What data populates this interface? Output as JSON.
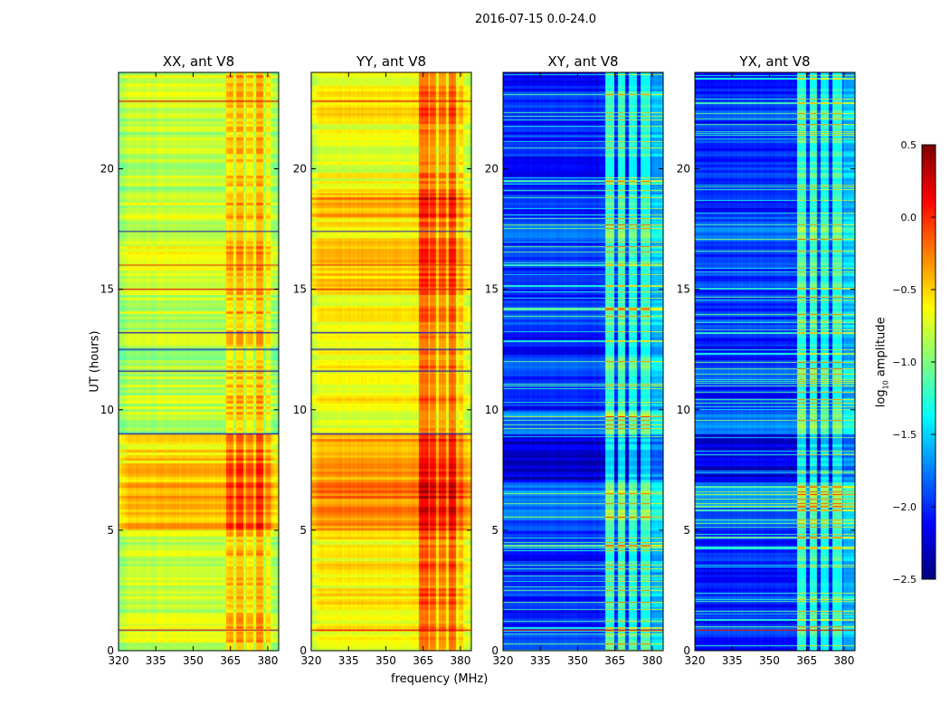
{
  "chart_data": {
    "type": "heatmap",
    "title": "2016-07-15 0.0-24.0",
    "xlabel": "frequency (MHz)",
    "ylabel": "UT (hours)",
    "xlim": [
      320,
      384.4
    ],
    "ylim": [
      0,
      24
    ],
    "xticks": [
      320,
      335,
      350,
      365,
      380
    ],
    "yticks": [
      0,
      5,
      10,
      15,
      20
    ],
    "colorbar": {
      "label": "log10 amplitude",
      "label_main": "log",
      "label_sub": "10",
      "label_rest": " amplitude",
      "range": [
        -2.5,
        0.5
      ],
      "ticks": [
        "0.5",
        "0.0",
        "−0.5",
        "−1.0",
        "−1.5",
        "−2.0",
        "−2.5"
      ],
      "tick_values": [
        0.5,
        0,
        -0.5,
        -1,
        -1.5,
        -2,
        -2.5
      ],
      "colormap": "jet"
    },
    "panels": [
      {
        "title": "XX, ant V8",
        "base": -0.85,
        "time_profile": [
          0.1,
          0.05,
          0.1,
          0.05,
          0.05,
          0.4,
          0.45,
          0.35,
          0.3,
          0.0,
          0.05,
          0.0,
          0.0,
          0.0,
          0.05,
          0.1,
          0.15,
          0.05,
          0.1,
          0.0,
          0.0,
          0.0,
          0.05,
          0.1
        ],
        "freq_bands": [
          {
            "from": 363,
            "to": 366,
            "boost": 0.35
          },
          {
            "from": 367,
            "to": 370,
            "boost": 0.45
          },
          {
            "from": 371,
            "to": 374,
            "boost": 0.3
          },
          {
            "from": 375,
            "to": 378,
            "boost": 0.45
          },
          {
            "from": 379,
            "to": 381,
            "boost": 0.2
          }
        ],
        "red_lines": [
          0.85,
          15.0,
          16.0,
          22.8
        ],
        "blue_lines": [
          9.0,
          11.6,
          12.5,
          13.2,
          17.4
        ]
      },
      {
        "title": "YY, ant V8",
        "base": -0.65,
        "time_profile": [
          0.05,
          0.05,
          0.05,
          0.05,
          0.05,
          0.35,
          0.4,
          0.3,
          0.3,
          0.0,
          0.05,
          0.0,
          0.0,
          0.0,
          0.05,
          0.15,
          0.15,
          0.05,
          0.3,
          0.0,
          0.0,
          0.0,
          0.05,
          0.05
        ],
        "freq_bands": [
          {
            "from": 363,
            "to": 367,
            "boost": 0.5
          },
          {
            "from": 367.5,
            "to": 370,
            "boost": 0.45
          },
          {
            "from": 371,
            "to": 374,
            "boost": 0.4
          },
          {
            "from": 375,
            "to": 378,
            "boost": 0.5
          },
          {
            "from": 379,
            "to": 381,
            "boost": 0.2
          }
        ],
        "red_lines": [
          0.85,
          15.0,
          16.0,
          22.8
        ],
        "blue_lines": [
          9.0,
          11.6,
          12.5,
          13.2,
          17.4
        ]
      },
      {
        "title": "XY, ant V8",
        "base": -2.05,
        "time_profile": [
          0.05,
          0.0,
          0.05,
          0.0,
          0.1,
          0.2,
          0.3,
          -0.2,
          -0.2,
          0.3,
          0.0,
          0.1,
          0.0,
          0.1,
          0.05,
          0.1,
          0.05,
          0.2,
          0.0,
          0.0,
          0.0,
          0.05,
          0.1,
          0.0
        ],
        "freq_bands": [
          {
            "from": 361,
            "to": 364.5,
            "boost": 0.9
          },
          {
            "from": 366,
            "to": 369,
            "boost": 0.9
          },
          {
            "from": 370.5,
            "to": 373.5,
            "boost": 0.8
          },
          {
            "from": 375,
            "to": 379,
            "boost": 0.85
          },
          {
            "from": 379.5,
            "to": 384.4,
            "boost": 0.5
          }
        ],
        "red_lines": [
          0.85
        ],
        "blue_lines": []
      },
      {
        "title": "YX, ant V8",
        "base": -2.05,
        "time_profile": [
          0.05,
          0.0,
          0.05,
          0.0,
          0.1,
          0.2,
          0.3,
          -0.2,
          -0.2,
          0.3,
          0.0,
          0.1,
          0.0,
          0.1,
          0.05,
          0.1,
          0.05,
          0.2,
          0.0,
          0.0,
          0.0,
          0.05,
          0.1,
          0.0
        ],
        "freq_bands": [
          {
            "from": 361,
            "to": 364.5,
            "boost": 0.9
          },
          {
            "from": 366,
            "to": 369,
            "boost": 0.9
          },
          {
            "from": 370.5,
            "to": 373.5,
            "boost": 0.8
          },
          {
            "from": 375,
            "to": 379,
            "boost": 0.85
          },
          {
            "from": 379.5,
            "to": 384.4,
            "boost": 0.5
          }
        ],
        "red_lines": [
          0.85
        ],
        "blue_lines": []
      }
    ]
  }
}
